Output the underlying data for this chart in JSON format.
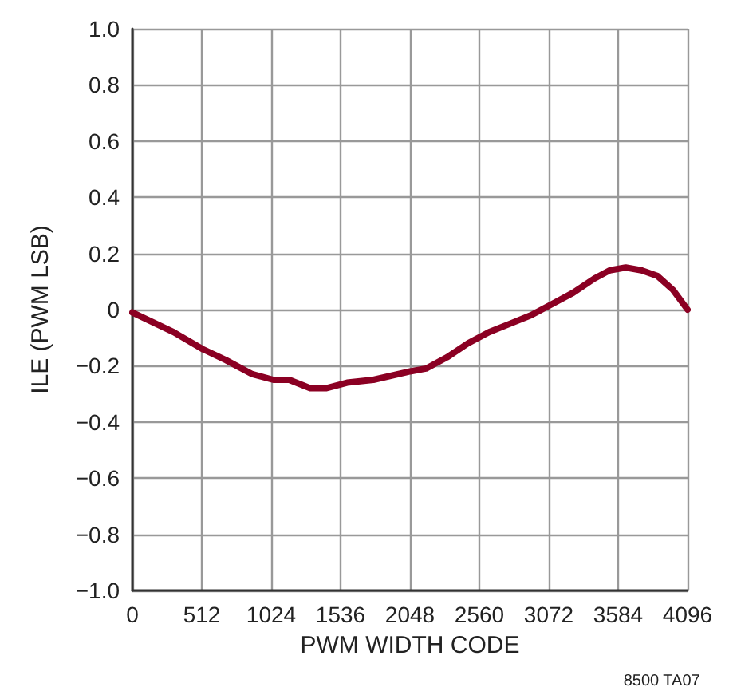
{
  "chart_data": {
    "type": "line",
    "xlabel": "PWM WIDTH CODE",
    "ylabel": "ILE (PWM LSB)",
    "annotations": [
      "8500 TA07"
    ],
    "x": [
      0,
      303,
      516,
      691,
      885,
      1040,
      1157,
      1312,
      1428,
      1584,
      1778,
      2049,
      2166,
      2321,
      2476,
      2631,
      2787,
      2942,
      3097,
      3252,
      3407,
      3523,
      3640,
      3756,
      3873,
      3989,
      4096
    ],
    "series": [
      {
        "color": "#8b0023",
        "values": [
          -0.01,
          -0.08,
          -0.14,
          -0.18,
          -0.23,
          -0.25,
          -0.25,
          -0.28,
          -0.28,
          -0.26,
          -0.25,
          -0.22,
          -0.21,
          -0.17,
          -0.12,
          -0.08,
          -0.05,
          -0.02,
          0.02,
          0.06,
          0.11,
          0.14,
          0.15,
          0.14,
          0.12,
          0.07,
          0.0
        ]
      }
    ],
    "xlim": [
      0,
      4096
    ],
    "xticks": [
      0,
      512,
      1024,
      1536,
      2048,
      2560,
      3072,
      3584,
      4096
    ],
    "ylim": [
      -1,
      1
    ],
    "yticks": [
      {
        "value": -1,
        "label": "−1.0"
      },
      {
        "value": -0.8,
        "label": "−0.8"
      },
      {
        "value": -0.6,
        "label": "−0.6"
      },
      {
        "value": -0.4,
        "label": "−0.4"
      },
      {
        "value": -0.2,
        "label": "−0.2"
      },
      0,
      {
        "value": 0.2,
        "label": "0.2"
      },
      {
        "value": 0.4,
        "label": "0.4"
      },
      {
        "value": 0.6,
        "label": "0.6"
      },
      {
        "value": 0.8,
        "label": "0.8"
      },
      {
        "value": 1,
        "label": "1.0"
      }
    ],
    "grid": true,
    "marker": "none",
    "line_style": "solid"
  }
}
